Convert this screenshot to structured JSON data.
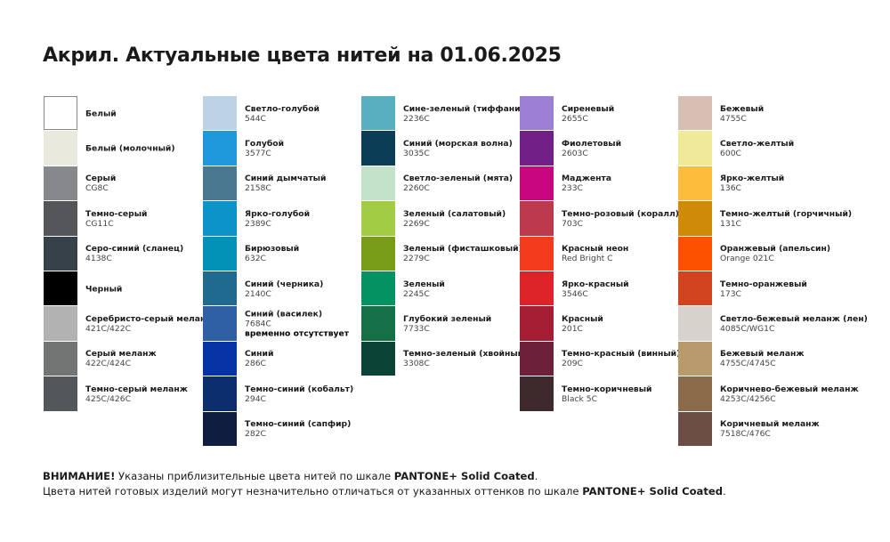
{
  "title": "Акрил. Актуальные цвета нитей на 01.06.2025",
  "columns": [
    [
      {
        "name": "Белый",
        "code": "",
        "color": "#ffffff"
      },
      {
        "name": "Белый (молочный)",
        "code": "",
        "color": "#eae9dd"
      },
      {
        "name": "Серый",
        "code": "CG8C",
        "color": "#87888c"
      },
      {
        "name": "Темно-серый",
        "code": "CG11C",
        "color": "#555659"
      },
      {
        "name": "Серо-синий (сланец)",
        "code": "4138C",
        "color": "#36414a"
      },
      {
        "name": "Черный",
        "code": "",
        "color": "#000000"
      },
      {
        "name": "Серебристо-серый меланж",
        "code": "421C/422C",
        "color": "#b1b2b1"
      },
      {
        "name": "Серый меланж",
        "code": "422C/424C",
        "color": "#737474"
      },
      {
        "name": "Темно-серый меланж",
        "code": "425C/426C",
        "color": "#52575b"
      }
    ],
    [
      {
        "name": "Светло-голубой",
        "code": "544C",
        "color": "#bcd3e6"
      },
      {
        "name": "Голубой",
        "code": "3577C",
        "color": "#1f98dc"
      },
      {
        "name": "Синий дымчатый",
        "code": "2158C",
        "color": "#4a7890"
      },
      {
        "name": "Ярко-голубой",
        "code": "2389C",
        "color": "#0c94c8"
      },
      {
        "name": "Бирюзовый",
        "code": "632C",
        "color": "#0392b7"
      },
      {
        "name": "Синий (черника)",
        "code": "2140C",
        "color": "#1f6a8e"
      },
      {
        "name": "Синий (василек)",
        "code": "7684C",
        "note": "временно отсутствует",
        "color": "#3060a4"
      },
      {
        "name": "Синий",
        "code": "286C",
        "color": "#0433a6"
      },
      {
        "name": "Темно-синий (кобальт)",
        "code": "294C",
        "color": "#0b2e6c"
      },
      {
        "name": "Темно-синий (сапфир)",
        "code": "282C",
        "color": "#0f1d40"
      }
    ],
    [
      {
        "name": "Сине-зеленый (тиффани)",
        "code": "2236C",
        "color": "#58aebc"
      },
      {
        "name": "Синий (морская волна)",
        "code": "3035C",
        "color": "#0c3d56"
      },
      {
        "name": "Светло-зеленый (мята)",
        "code": "2260C",
        "color": "#c2e3c8"
      },
      {
        "name": "Зеленый (салатовый)",
        "code": "2269C",
        "color": "#a3cc45"
      },
      {
        "name": "Зеленый (фисташковый)",
        "code": "2279C",
        "color": "#789c18"
      },
      {
        "name": "Зеленый",
        "code": "2245C",
        "color": "#039262"
      },
      {
        "name": "Глубокий зеленый",
        "code": "7733C",
        "color": "#137047"
      },
      {
        "name": "Темно-зеленый (хвойный)",
        "code": "3308C",
        "color": "#0b4436"
      }
    ],
    [
      {
        "name": "Сиреневый",
        "code": "2655C",
        "color": "#9a7fd2"
      },
      {
        "name": "Фиолетовый",
        "code": "2603C",
        "color": "#712088"
      },
      {
        "name": "Маджента",
        "code": "233C",
        "color": "#c7067f"
      },
      {
        "name": "Темно-розовый (коралл)",
        "code": "703C",
        "color": "#bd3a4c"
      },
      {
        "name": "Красный неон",
        "code": "Red Bright C",
        "color": "#f43b1e"
      },
      {
        "name": "Ярко-красный",
        "code": "3546C",
        "color": "#de2428"
      },
      {
        "name": "Красный",
        "code": "201C",
        "color": "#a61e34"
      },
      {
        "name": "Темно-красный (винный)",
        "code": "209C",
        "color": "#6c203a"
      },
      {
        "name": "Темно-коричневый",
        "code": "Black 5C",
        "color": "#3e2a2d"
      }
    ],
    [
      {
        "name": "Бежевый",
        "code": "4755C",
        "color": "#d6c0b3"
      },
      {
        "name": "Светло-желтый",
        "code": "600C",
        "color": "#f0e99a"
      },
      {
        "name": "Ярко-желтый",
        "code": "136C",
        "color": "#fbbd3b"
      },
      {
        "name": "Темно-желтый (горчичный)",
        "code": "131C",
        "color": "#cf8a06"
      },
      {
        "name": "Оранжевый (апельсин)",
        "code": "Orange 021C",
        "color": "#fe5100"
      },
      {
        "name": "Темно-оранжевый",
        "code": "173C",
        "color": "#d1431f"
      },
      {
        "name": "Светло-бежевый меланж (лен)",
        "code": "4085C/WG1C",
        "color": "#d7d2cb"
      },
      {
        "name": "Бежевый меланж",
        "code": "4755C/4745C",
        "color": "#b99a6c"
      },
      {
        "name": "Коричнево-бежевый меланж",
        "code": "4253C/4256C",
        "color": "#8c6b4a"
      },
      {
        "name": "Коричневый меланж",
        "code": "7518C/476C",
        "color": "#6d4e45"
      }
    ]
  ],
  "footer": {
    "warning_label": "ВНИМАНИЕ!",
    "line1": " Указаны приблизительные цвета нитей по шкале ",
    "pantone": "PANTONE+ Solid Coated",
    "line1_end": ".",
    "line2": "Цвета нитей готовых изделий могут незначительно отличаться от указанных оттенков по шкале ",
    "line2_end": "."
  }
}
